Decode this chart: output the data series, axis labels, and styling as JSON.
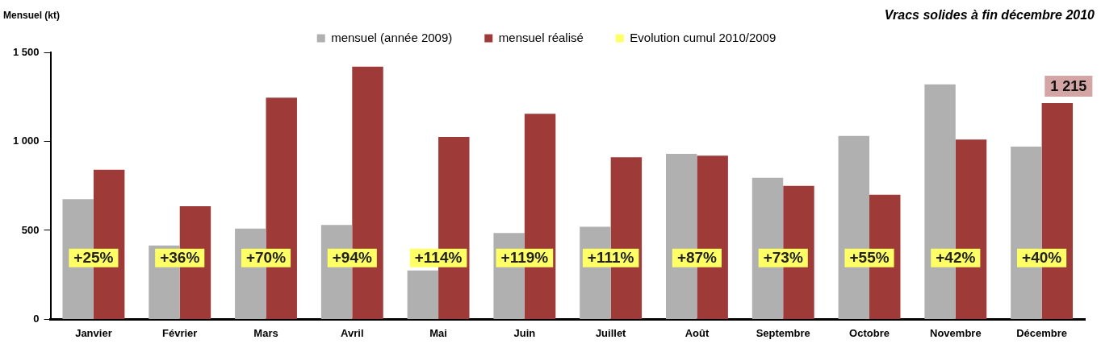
{
  "chart_data": {
    "type": "bar",
    "title": "Vracs solides à fin décembre 2010",
    "ylabel": "Mensuel (kt)",
    "categories": [
      "Janvier",
      "Février",
      "Mars",
      "Avril",
      "Mai",
      "Juin",
      "Juillet",
      "Août",
      "Septembre",
      "Octobre",
      "Novembre",
      "Décembre"
    ],
    "series": [
      {
        "name": "mensuel (année 2009)",
        "color": "#b0b0b0",
        "values": [
          675,
          415,
          510,
          530,
          275,
          485,
          520,
          930,
          795,
          1030,
          1320,
          970
        ]
      },
      {
        "name": "mensuel réalisé",
        "color": "#9e3a38",
        "values": [
          840,
          635,
          1245,
          1420,
          1025,
          1155,
          910,
          920,
          750,
          700,
          1010,
          1215
        ],
        "value_labels": [
          null,
          null,
          null,
          null,
          null,
          null,
          null,
          null,
          null,
          null,
          null,
          "1 215"
        ]
      },
      {
        "name": "Evolution cumul 2010/2009",
        "color": "#ffff66",
        "type": "scatter",
        "values": [
          null,
          null,
          null,
          null,
          null,
          null,
          null,
          null,
          null,
          null,
          null,
          null
        ]
      }
    ],
    "annotations": [
      {
        "text": "+25%",
        "x": "Janvier"
      },
      {
        "text": "+36%",
        "x": "Février"
      },
      {
        "text": "+70%",
        "x": "Mars"
      },
      {
        "text": "+94%",
        "x": "Avril"
      },
      {
        "text": "+114%",
        "x": "Mai"
      },
      {
        "text": "+119%",
        "x": "Juin"
      },
      {
        "text": "+111%",
        "x": "Juillet"
      },
      {
        "text": "+87%",
        "x": "Août"
      },
      {
        "text": "+73%",
        "x": "Septembre"
      },
      {
        "text": "+55%",
        "x": "Octobre"
      },
      {
        "text": "+42%",
        "x": "Novembre"
      },
      {
        "text": "+40%",
        "x": "Décembre"
      }
    ],
    "ylim": [
      0,
      1500
    ],
    "yticks": [
      0,
      500,
      {
        "value": 1000,
        "label": "1 000"
      },
      {
        "value": 1500,
        "label": "1 500"
      }
    ],
    "legend": "top",
    "grid": false
  }
}
